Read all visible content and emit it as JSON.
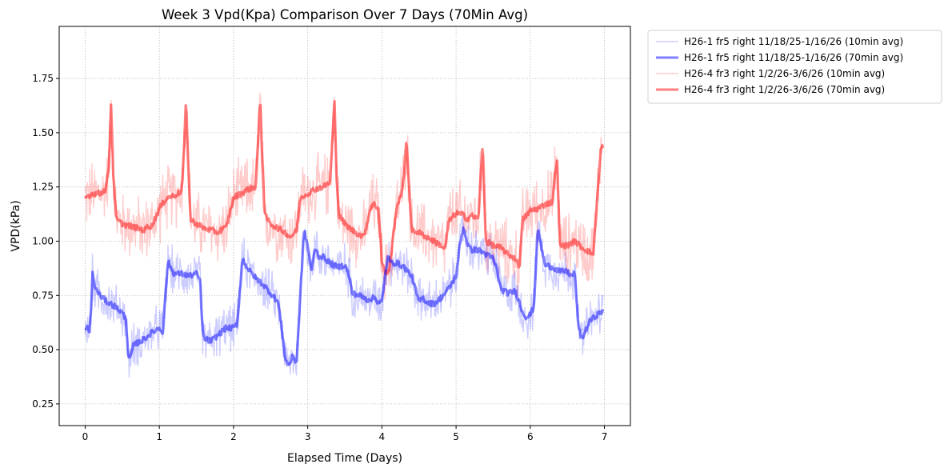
{
  "chart_data": {
    "type": "line",
    "title": "Week 3 Vpd(Kpa) Comparison Over 7 Days (70Min Avg)",
    "xlabel": "Elapsed Time (Days)",
    "ylabel": "VPD(kPa)",
    "xlim": [
      -0.35,
      7.35
    ],
    "ylim": [
      0.15,
      1.99
    ],
    "xticks": [
      0,
      1,
      2,
      3,
      4,
      5,
      6,
      7
    ],
    "xtick_labels": [
      "0",
      "1",
      "2",
      "3",
      "4",
      "5",
      "6",
      "7"
    ],
    "yticks": [
      0.25,
      0.5,
      0.75,
      1.0,
      1.25,
      1.5,
      1.75
    ],
    "ytick_labels": [
      "0.25",
      "0.50",
      "0.75",
      "1.00",
      "1.25",
      "1.50",
      "1.75"
    ],
    "grid": true,
    "legend_position": "outside-top-right",
    "series": [
      {
        "name": "H26-1 fr5 right 11/18/25-1/16/26 (10min avg)",
        "color": "#0000ff",
        "alpha": 0.2,
        "kind": "raw",
        "noise": 0.09,
        "base_series": 1
      },
      {
        "name": "H26-1 fr5 right 11/18/25-1/16/26 (70min avg)",
        "color": "#0000ff",
        "alpha": 0.5,
        "kind": "smooth",
        "x": [
          0.0,
          0.03,
          0.06,
          0.08,
          0.1,
          0.13,
          0.2,
          0.3,
          0.4,
          0.5,
          0.55,
          0.58,
          0.6,
          0.65,
          0.7,
          0.8,
          0.9,
          1.0,
          1.05,
          1.08,
          1.12,
          1.15,
          1.2,
          1.3,
          1.4,
          1.5,
          1.55,
          1.58,
          1.6,
          1.7,
          1.8,
          1.9,
          2.0,
          2.05,
          2.08,
          2.12,
          2.2,
          2.3,
          2.4,
          2.5,
          2.55,
          2.6,
          2.65,
          2.7,
          2.75,
          2.8,
          2.85,
          2.9,
          2.95,
          3.0,
          3.05,
          3.1,
          3.15,
          3.2,
          3.3,
          3.4,
          3.5,
          3.55,
          3.6,
          3.7,
          3.8,
          3.9,
          3.95,
          4.0,
          4.05,
          4.08,
          4.12,
          4.2,
          4.3,
          4.4,
          4.5,
          4.55,
          4.6,
          4.7,
          4.8,
          4.9,
          5.0,
          5.05,
          5.1,
          5.15,
          5.2,
          5.3,
          5.4,
          5.5,
          5.55,
          5.6,
          5.7,
          5.8,
          5.9,
          5.95,
          6.0,
          6.05,
          6.1,
          6.15,
          6.2,
          6.3,
          6.4,
          6.5,
          6.55,
          6.6,
          6.65,
          6.7,
          6.8,
          6.9,
          6.98
        ],
        "y": [
          0.59,
          0.6,
          0.58,
          0.7,
          0.85,
          0.79,
          0.75,
          0.72,
          0.7,
          0.67,
          0.64,
          0.48,
          0.45,
          0.52,
          0.53,
          0.55,
          0.58,
          0.6,
          0.58,
          0.75,
          0.91,
          0.88,
          0.85,
          0.85,
          0.84,
          0.85,
          0.82,
          0.6,
          0.55,
          0.54,
          0.57,
          0.6,
          0.6,
          0.62,
          0.75,
          0.92,
          0.87,
          0.83,
          0.8,
          0.76,
          0.74,
          0.72,
          0.6,
          0.45,
          0.43,
          0.47,
          0.44,
          0.75,
          1.05,
          0.98,
          0.86,
          0.97,
          0.93,
          0.93,
          0.9,
          0.88,
          0.89,
          0.85,
          0.76,
          0.75,
          0.73,
          0.74,
          0.72,
          0.72,
          0.86,
          0.93,
          0.9,
          0.9,
          0.88,
          0.84,
          0.72,
          0.74,
          0.72,
          0.71,
          0.74,
          0.78,
          0.84,
          0.98,
          1.07,
          0.99,
          0.96,
          0.96,
          0.94,
          0.92,
          0.87,
          0.78,
          0.76,
          0.77,
          0.67,
          0.65,
          0.66,
          0.7,
          1.06,
          0.97,
          0.89,
          0.88,
          0.86,
          0.86,
          0.84,
          0.85,
          0.6,
          0.55,
          0.63,
          0.66,
          0.68
        ]
      },
      {
        "name": "H26-4 fr3 right 1/2/26-3/6/26 (10min avg)",
        "color": "#ff0000",
        "alpha": 0.2,
        "kind": "raw",
        "noise": 0.13,
        "base_series": 3
      },
      {
        "name": "H26-4 fr3 right 1/2/26-3/6/26 (70min avg)",
        "color": "#ff0000",
        "alpha": 0.5,
        "kind": "smooth",
        "x": [
          0.0,
          0.05,
          0.1,
          0.2,
          0.28,
          0.32,
          0.35,
          0.38,
          0.42,
          0.5,
          0.6,
          0.7,
          0.8,
          0.85,
          0.9,
          1.0,
          1.1,
          1.2,
          1.3,
          1.33,
          1.36,
          1.39,
          1.42,
          1.5,
          1.6,
          1.7,
          1.8,
          1.85,
          1.9,
          2.0,
          2.1,
          2.2,
          2.3,
          2.33,
          2.36,
          2.39,
          2.42,
          2.5,
          2.6,
          2.7,
          2.75,
          2.8,
          2.85,
          2.9,
          2.95,
          3.0,
          3.1,
          3.2,
          3.3,
          3.33,
          3.36,
          3.39,
          3.42,
          3.5,
          3.6,
          3.7,
          3.75,
          3.8,
          3.85,
          3.9,
          3.95,
          3.98,
          4.0,
          4.05,
          4.1,
          4.2,
          4.25,
          4.3,
          4.33,
          4.36,
          4.4,
          4.5,
          4.6,
          4.7,
          4.8,
          4.85,
          4.9,
          5.0,
          5.1,
          5.15,
          5.2,
          5.3,
          5.33,
          5.36,
          5.4,
          5.5,
          5.6,
          5.7,
          5.8,
          5.85,
          5.9,
          6.0,
          6.1,
          6.2,
          6.3,
          6.33,
          6.36,
          6.4,
          6.5,
          6.6,
          6.7,
          6.8,
          6.85,
          6.9,
          6.95,
          6.98
        ],
        "y": [
          1.2,
          1.21,
          1.22,
          1.22,
          1.24,
          1.35,
          1.64,
          1.3,
          1.1,
          1.08,
          1.07,
          1.06,
          1.05,
          1.07,
          1.07,
          1.15,
          1.2,
          1.21,
          1.23,
          1.4,
          1.65,
          1.35,
          1.1,
          1.08,
          1.06,
          1.05,
          1.04,
          1.06,
          1.06,
          1.2,
          1.22,
          1.24,
          1.25,
          1.45,
          1.66,
          1.35,
          1.12,
          1.08,
          1.06,
          1.04,
          1.02,
          1.03,
          1.05,
          1.2,
          1.21,
          1.22,
          1.24,
          1.25,
          1.27,
          1.45,
          1.64,
          1.3,
          1.12,
          1.08,
          1.05,
          1.03,
          1.02,
          1.08,
          1.16,
          1.17,
          1.15,
          1.02,
          0.9,
          0.85,
          0.87,
          1.16,
          1.2,
          1.3,
          1.47,
          1.3,
          1.05,
          1.04,
          1.02,
          1.0,
          0.98,
          0.96,
          1.09,
          1.13,
          1.12,
          1.1,
          1.12,
          1.1,
          1.28,
          1.45,
          1.0,
          0.98,
          0.97,
          0.94,
          0.92,
          0.88,
          1.1,
          1.14,
          1.15,
          1.17,
          1.18,
          1.3,
          1.38,
          0.98,
          0.98,
          1.0,
          0.97,
          0.95,
          0.94,
          1.18,
          1.42,
          1.44
        ]
      }
    ]
  }
}
